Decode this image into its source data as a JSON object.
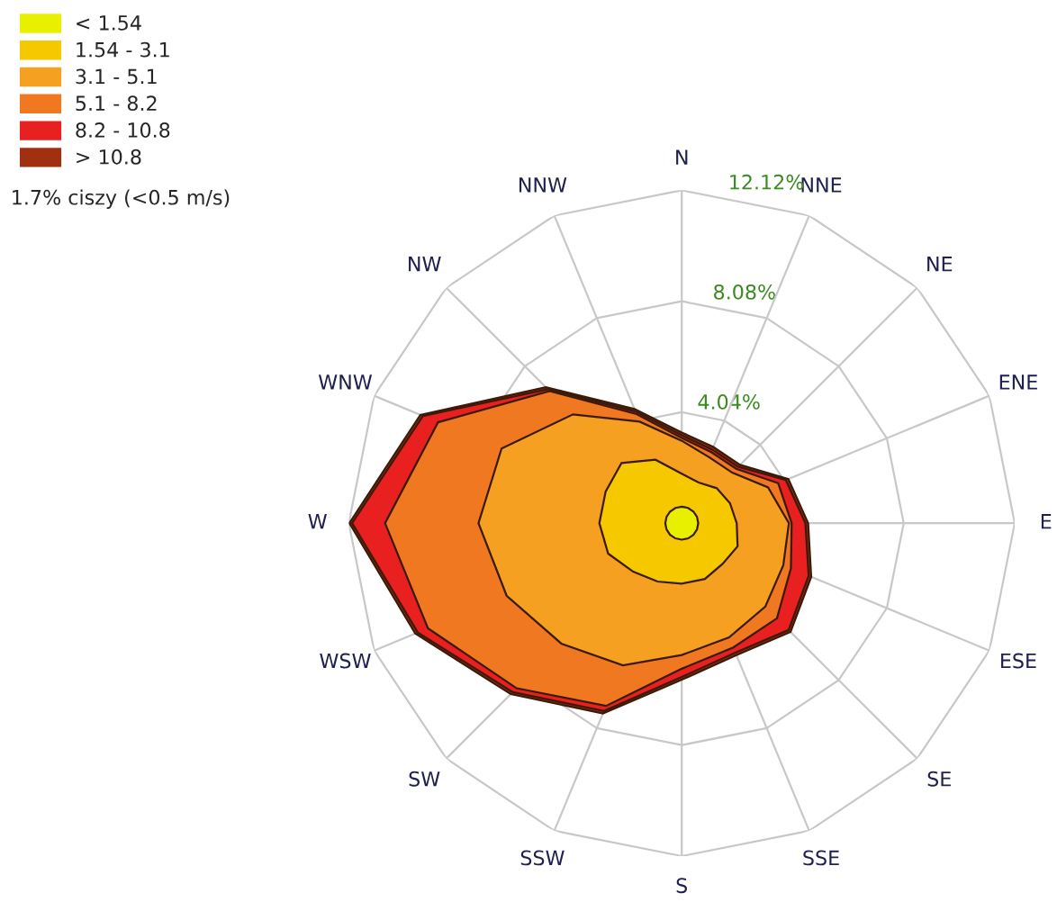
{
  "chart_data": {
    "type": "radar",
    "categories": [
      "N",
      "NNE",
      "NE",
      "ENE",
      "E",
      "ESE",
      "SE",
      "SSE",
      "S",
      "SSW",
      "SW",
      "WSW",
      "W",
      "WNW",
      "NW",
      "NNW"
    ],
    "series": [
      {
        "name": "> 10.8",
        "color": "#a03010",
        "values": [
          3.3,
          3.0,
          3.0,
          4.2,
          4.6,
          5.1,
          5.6,
          5.2,
          5.7,
          7.5,
          8.8,
          10.5,
          12.1,
          10.3,
          7.0,
          4.5
        ]
      },
      {
        "name": "8.2 - 10.8",
        "color": "#e82020",
        "values": [
          3.2,
          2.9,
          2.9,
          4.1,
          4.5,
          5.0,
          5.5,
          5.1,
          5.6,
          7.4,
          8.7,
          10.4,
          12.0,
          10.2,
          6.9,
          4.4
        ]
      },
      {
        "name": "5.1 - 8.2",
        "color": "#f07820",
        "values": [
          3.1,
          2.8,
          2.8,
          3.8,
          4.0,
          4.3,
          4.9,
          4.9,
          5.3,
          7.2,
          8.5,
          10.0,
          10.8,
          9.6,
          6.8,
          4.3
        ]
      },
      {
        "name": "3.1 - 5.1",
        "color": "#f5a020",
        "values": [
          3.0,
          2.6,
          2.6,
          3.4,
          3.9,
          4.0,
          4.3,
          4.5,
          4.8,
          5.6,
          6.2,
          6.9,
          7.4,
          7.1,
          5.6,
          4.0
        ]
      },
      {
        "name": "1.54 - 3.1",
        "color": "#f5c800",
        "values": [
          1.8,
          1.6,
          1.8,
          1.9,
          2.0,
          2.2,
          2.1,
          2.2,
          2.2,
          2.3,
          2.5,
          2.9,
          3.0,
          3.0,
          3.1,
          2.5
        ]
      },
      {
        "name": "< 1.54",
        "color": "#e8f000",
        "values": [
          0.6,
          0.6,
          0.6,
          0.6,
          0.6,
          0.6,
          0.6,
          0.6,
          0.6,
          0.6,
          0.6,
          0.6,
          0.6,
          0.6,
          0.6,
          0.6
        ]
      }
    ],
    "ylim": [
      0,
      12.12
    ],
    "yticks": [
      {
        "value": 4.04,
        "label": "4.04%"
      },
      {
        "value": 8.08,
        "label": "8.08%"
      },
      {
        "value": 12.12,
        "label": "12.12%"
      }
    ],
    "grid": true,
    "legend": "top left",
    "annotations": [
      "1.7% ciszy (<0.5 m/s)"
    ]
  }
}
